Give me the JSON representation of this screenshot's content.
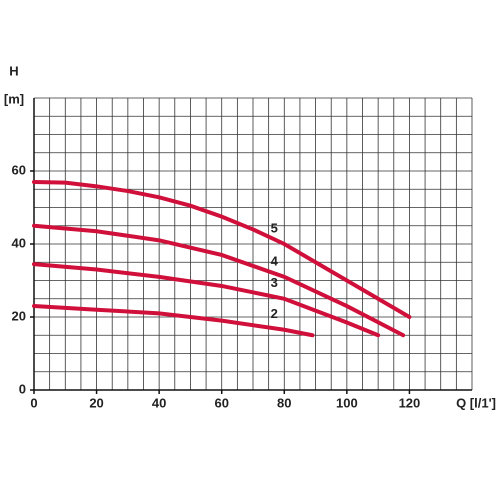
{
  "chart_data": {
    "type": "line",
    "y_label": "H",
    "y_unit": "[m]",
    "x_label": "Q [l/1']",
    "xlim": [
      0,
      140
    ],
    "ylim": [
      0,
      80
    ],
    "xticks": [
      0,
      20,
      40,
      60,
      80,
      100,
      120
    ],
    "yticks": [
      0,
      20,
      40,
      60
    ],
    "xgrid": [
      0,
      5,
      10,
      15,
      20,
      25,
      30,
      35,
      40,
      45,
      50,
      55,
      60,
      65,
      70,
      75,
      80,
      85,
      90,
      95,
      100,
      105,
      110,
      115,
      120,
      125,
      130,
      135,
      140
    ],
    "ygrid": [
      0,
      5,
      10,
      15,
      20,
      25,
      30,
      35,
      40,
      45,
      50,
      55,
      60,
      65,
      70,
      75,
      80
    ],
    "grid": true,
    "series": [
      {
        "name": "5",
        "color": "#d0103a",
        "x": [
          0,
          10,
          20,
          30,
          40,
          50,
          60,
          70,
          80,
          90,
          100,
          110,
          120
        ],
        "values": [
          57,
          56.8,
          55.8,
          54.5,
          52.8,
          50.5,
          47.5,
          44,
          40,
          35,
          30,
          25,
          20
        ]
      },
      {
        "name": "4",
        "color": "#d0103a",
        "x": [
          0,
          20,
          40,
          60,
          80,
          100,
          118
        ],
        "values": [
          45,
          43.5,
          41,
          37,
          31,
          23,
          15
        ]
      },
      {
        "name": "3",
        "color": "#d0103a",
        "x": [
          0,
          20,
          40,
          60,
          80,
          100,
          110
        ],
        "values": [
          34.5,
          33,
          31,
          28.5,
          25,
          18.5,
          15
        ]
      },
      {
        "name": "2",
        "color": "#d0103a",
        "x": [
          0,
          20,
          40,
          60,
          80,
          89
        ],
        "values": [
          23,
          22,
          21,
          19,
          16.5,
          15
        ]
      }
    ]
  }
}
